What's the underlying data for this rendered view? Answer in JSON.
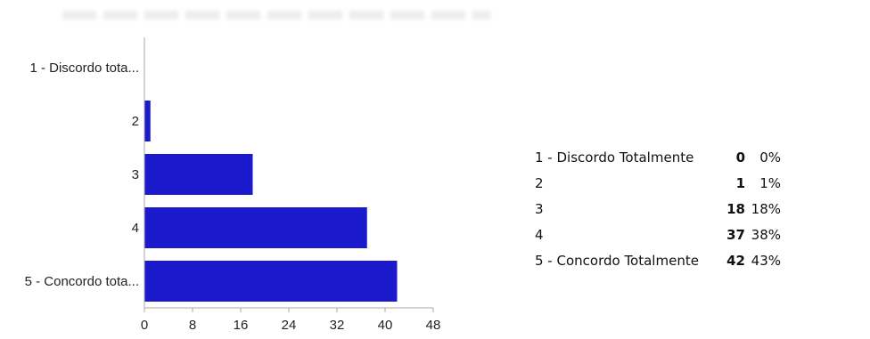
{
  "chart_data": {
    "type": "bar",
    "orientation": "horizontal",
    "categories": [
      "1 - Discordo tota...",
      "2",
      "3",
      "4",
      "5 - Concordo tota..."
    ],
    "values": [
      0,
      1,
      18,
      37,
      42
    ],
    "xlim": [
      0,
      48
    ],
    "xticks": [
      "0",
      "8",
      "16",
      "24",
      "32",
      "40",
      "48"
    ],
    "grid": false,
    "bar_color": "#1a1acc"
  },
  "summary": {
    "rows": [
      {
        "label": "1 - Discordo Totalmente",
        "count": "0",
        "percent": "0%"
      },
      {
        "label": "2",
        "count": "1",
        "percent": "1%"
      },
      {
        "label": "3",
        "count": "18",
        "percent": "18%"
      },
      {
        "label": "4",
        "count": "37",
        "percent": "38%"
      },
      {
        "label": "5 - Concordo Totalmente",
        "count": "42",
        "percent": "43%"
      }
    ]
  }
}
